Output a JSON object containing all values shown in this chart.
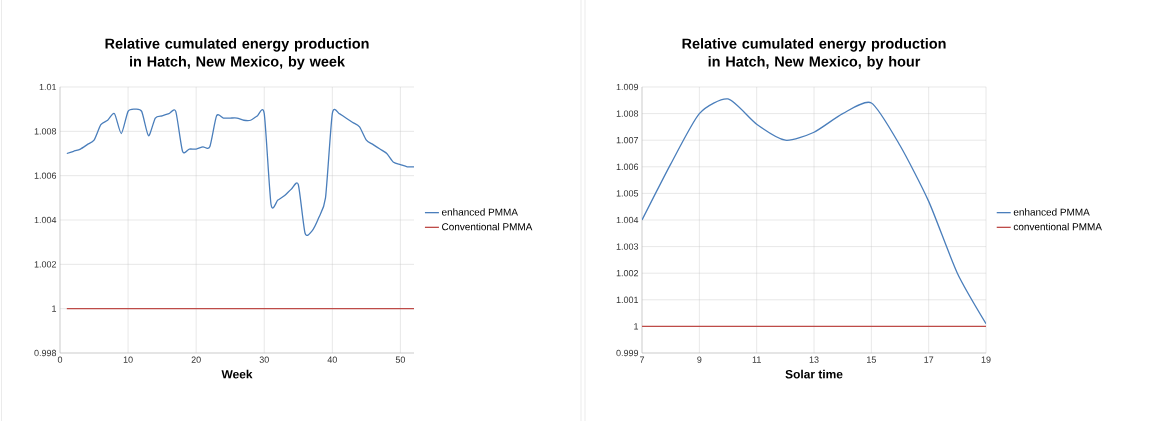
{
  "chart_data": [
    {
      "type": "line",
      "title": "Relative cumulated energy production in Hatch, New Mexico, by week",
      "xlabel": "Week",
      "x": [
        1,
        2,
        3,
        4,
        5,
        6,
        7,
        8,
        9,
        10,
        11,
        12,
        13,
        14,
        15,
        16,
        17,
        18,
        19,
        20,
        21,
        22,
        23,
        24,
        25,
        26,
        27,
        28,
        29,
        30,
        31,
        32,
        33,
        34,
        35,
        36,
        37,
        38,
        39,
        40,
        41,
        42,
        43,
        44,
        45,
        46,
        47,
        48,
        49,
        50,
        51,
        52
      ],
      "series": [
        {
          "name": "enhanced PMMA",
          "color": "#4a7ebb",
          "values": [
            1.007,
            1.0071,
            1.0072,
            1.0074,
            1.0076,
            1.0083,
            1.0085,
            1.0088,
            1.0079,
            1.0089,
            1.009,
            1.0089,
            1.0078,
            1.0086,
            1.0087,
            1.0088,
            1.0089,
            1.0071,
            1.0072,
            1.0072,
            1.0073,
            1.0073,
            1.0087,
            1.0086,
            1.0086,
            1.0086,
            1.0085,
            1.0085,
            1.0087,
            1.0088,
            1.0047,
            1.0049,
            1.0051,
            1.0054,
            1.0056,
            1.0034,
            1.0035,
            1.0041,
            1.005,
            1.0088,
            1.0088,
            1.0086,
            1.0084,
            1.0082,
            1.0076,
            1.0074,
            1.0072,
            1.007,
            1.0066,
            1.0065,
            1.0064,
            1.0064
          ]
        },
        {
          "name": "Conventional PMMA",
          "color": "#be4b48",
          "values": [
            1,
            1,
            1,
            1,
            1,
            1,
            1,
            1,
            1,
            1,
            1,
            1,
            1,
            1,
            1,
            1,
            1,
            1,
            1,
            1,
            1,
            1,
            1,
            1,
            1,
            1,
            1,
            1,
            1,
            1,
            1,
            1,
            1,
            1,
            1,
            1,
            1,
            1,
            1,
            1,
            1,
            1,
            1,
            1,
            1,
            1,
            1,
            1,
            1,
            1,
            1,
            1
          ]
        }
      ],
      "xlim": [
        0,
        52
      ],
      "ylim": [
        0.998,
        1.01
      ],
      "xticks": [
        0,
        10,
        20,
        30,
        40,
        50
      ],
      "yticks": [
        0.998,
        1,
        1.002,
        1.004,
        1.006,
        1.008,
        1.01
      ],
      "grid": true,
      "legend": "right"
    },
    {
      "type": "line",
      "title": "Relative cumulated energy production in Hatch, New Mexico, by hour",
      "xlabel": "Solar time",
      "x": [
        7,
        8,
        9,
        10,
        11,
        12,
        13,
        14,
        15,
        16,
        17,
        18,
        19
      ],
      "series": [
        {
          "name": "enhanced PMMA",
          "color": "#4a7ebb",
          "values": [
            1.004,
            1.0061,
            1.008,
            1.00855,
            1.0076,
            1.007,
            1.0073,
            1.008,
            1.0084,
            1.0068,
            1.0047,
            1.002,
            1.0001
          ]
        },
        {
          "name": "conventional PMMA",
          "color": "#be4b48",
          "values": [
            1,
            1,
            1,
            1,
            1,
            1,
            1,
            1,
            1,
            1,
            1,
            1,
            1
          ]
        }
      ],
      "xlim": [
        7,
        19
      ],
      "ylim": [
        0.999,
        1.009
      ],
      "xticks": [
        7,
        9,
        11,
        13,
        15,
        17,
        19
      ],
      "yticks": [
        0.999,
        1,
        1.001,
        1.002,
        1.003,
        1.004,
        1.005,
        1.006,
        1.007,
        1.008,
        1.009
      ],
      "grid": true,
      "legend": "right"
    }
  ]
}
